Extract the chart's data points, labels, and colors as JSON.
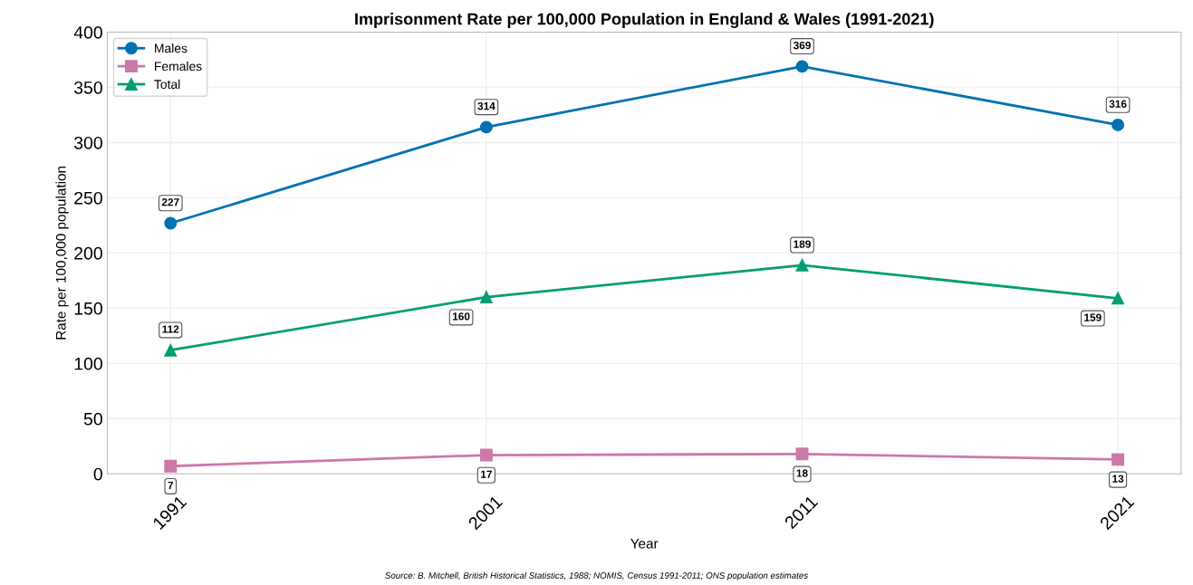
{
  "chart_data": {
    "type": "line",
    "title": "Imprisonment Rate per 100,000 Population in England & Wales (1991-2021)",
    "xlabel": "Year",
    "ylabel": "Rate per 100,000 population",
    "categories": [
      "1991",
      "2001",
      "2011",
      "2021"
    ],
    "series": [
      {
        "name": "Males",
        "color": "#0072b2",
        "marker": "circle",
        "values": [
          227,
          314,
          369,
          316
        ]
      },
      {
        "name": "Females",
        "color": "#cc79a7",
        "marker": "square",
        "values": [
          7,
          17,
          18,
          13
        ]
      },
      {
        "name": "Total",
        "color": "#009e73",
        "marker": "triangle",
        "values": [
          112,
          160,
          189,
          159
        ]
      }
    ],
    "ylim": [
      0,
      400
    ],
    "yticks": [
      0,
      50,
      100,
      150,
      200,
      250,
      300,
      350,
      400
    ],
    "grid": true,
    "legend": "top left",
    "data_labels": true,
    "line_style": "solid",
    "annotations": [
      "Source: B. Mitchell, British Historical Statistics, 1988; NOMIS, Census 1991-2011; ONS population estimates"
    ]
  }
}
